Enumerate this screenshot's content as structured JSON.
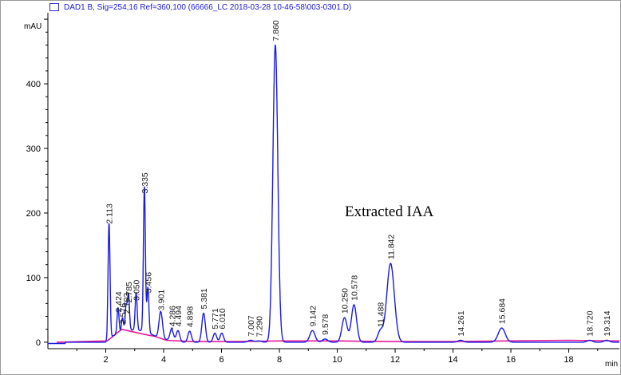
{
  "chart_data": {
    "type": "line",
    "legend_label": "DAD1 B, Sig=254,16 Ref=360,100 (66666_LC 2018-03-28 10-46-58\\003-0301.D)",
    "ylabel": "mAU",
    "xlabel": "min",
    "xlim": [
      0,
      19.75
    ],
    "ylim": [
      -10,
      510
    ],
    "xticks": [
      2,
      4,
      6,
      8,
      10,
      12,
      14,
      16,
      18
    ],
    "yticks": [
      0,
      100,
      200,
      300,
      400
    ],
    "annotation": "Extracted IAA",
    "grid": false,
    "colors": {
      "signal": "#1a1ae6",
      "baseline": "#e6199a",
      "text": "#000000",
      "axis": "#000000"
    },
    "peaks": [
      {
        "label": "2.113",
        "x": 2.113,
        "height": 177
      },
      {
        "label": "2.424",
        "x": 2.424,
        "height": 40
      },
      {
        "label": "2.576",
        "x": 2.576,
        "height": 22
      },
      {
        "label": "2.703",
        "x": 2.703,
        "height": 38
      },
      {
        "label": "2.785",
        "x": 2.785,
        "height": 55
      },
      {
        "label": "3.050",
        "x": 3.05,
        "height": 58
      },
      {
        "label": "3.335",
        "x": 3.335,
        "height": 224
      },
      {
        "label": "3.456",
        "x": 3.456,
        "height": 70
      },
      {
        "label": "3.901",
        "x": 3.901,
        "height": 43
      },
      {
        "label": "4.286",
        "x": 4.286,
        "height": 18
      },
      {
        "label": "4.494",
        "x": 4.494,
        "height": 18
      },
      {
        "label": "4.898",
        "x": 4.898,
        "height": 17
      },
      {
        "label": "5.381",
        "x": 5.381,
        "height": 45
      },
      {
        "label": "5.771",
        "x": 5.771,
        "height": 14
      },
      {
        "label": "6.010",
        "x": 6.01,
        "height": 14
      },
      {
        "label": "7.007",
        "x": 7.007,
        "height": 3
      },
      {
        "label": "7.290",
        "x": 7.29,
        "height": 2
      },
      {
        "label": "7.860",
        "x": 7.86,
        "height": 460
      },
      {
        "label": "9.142",
        "x": 9.142,
        "height": 18
      },
      {
        "label": "9.578",
        "x": 9.578,
        "height": 5
      },
      {
        "label": "10.250",
        "x": 10.25,
        "height": 38
      },
      {
        "label": "10.578",
        "x": 10.578,
        "height": 58
      },
      {
        "label": "11.488",
        "x": 11.488,
        "height": 17
      },
      {
        "label": "11.842",
        "x": 11.842,
        "height": 122
      },
      {
        "label": "14.261",
        "x": 14.261,
        "height": 3
      },
      {
        "label": "15.684",
        "x": 15.684,
        "height": 22
      },
      {
        "label": "18.720",
        "x": 18.72,
        "height": 3
      },
      {
        "label": "19.314",
        "x": 19.314,
        "height": 3
      }
    ]
  }
}
